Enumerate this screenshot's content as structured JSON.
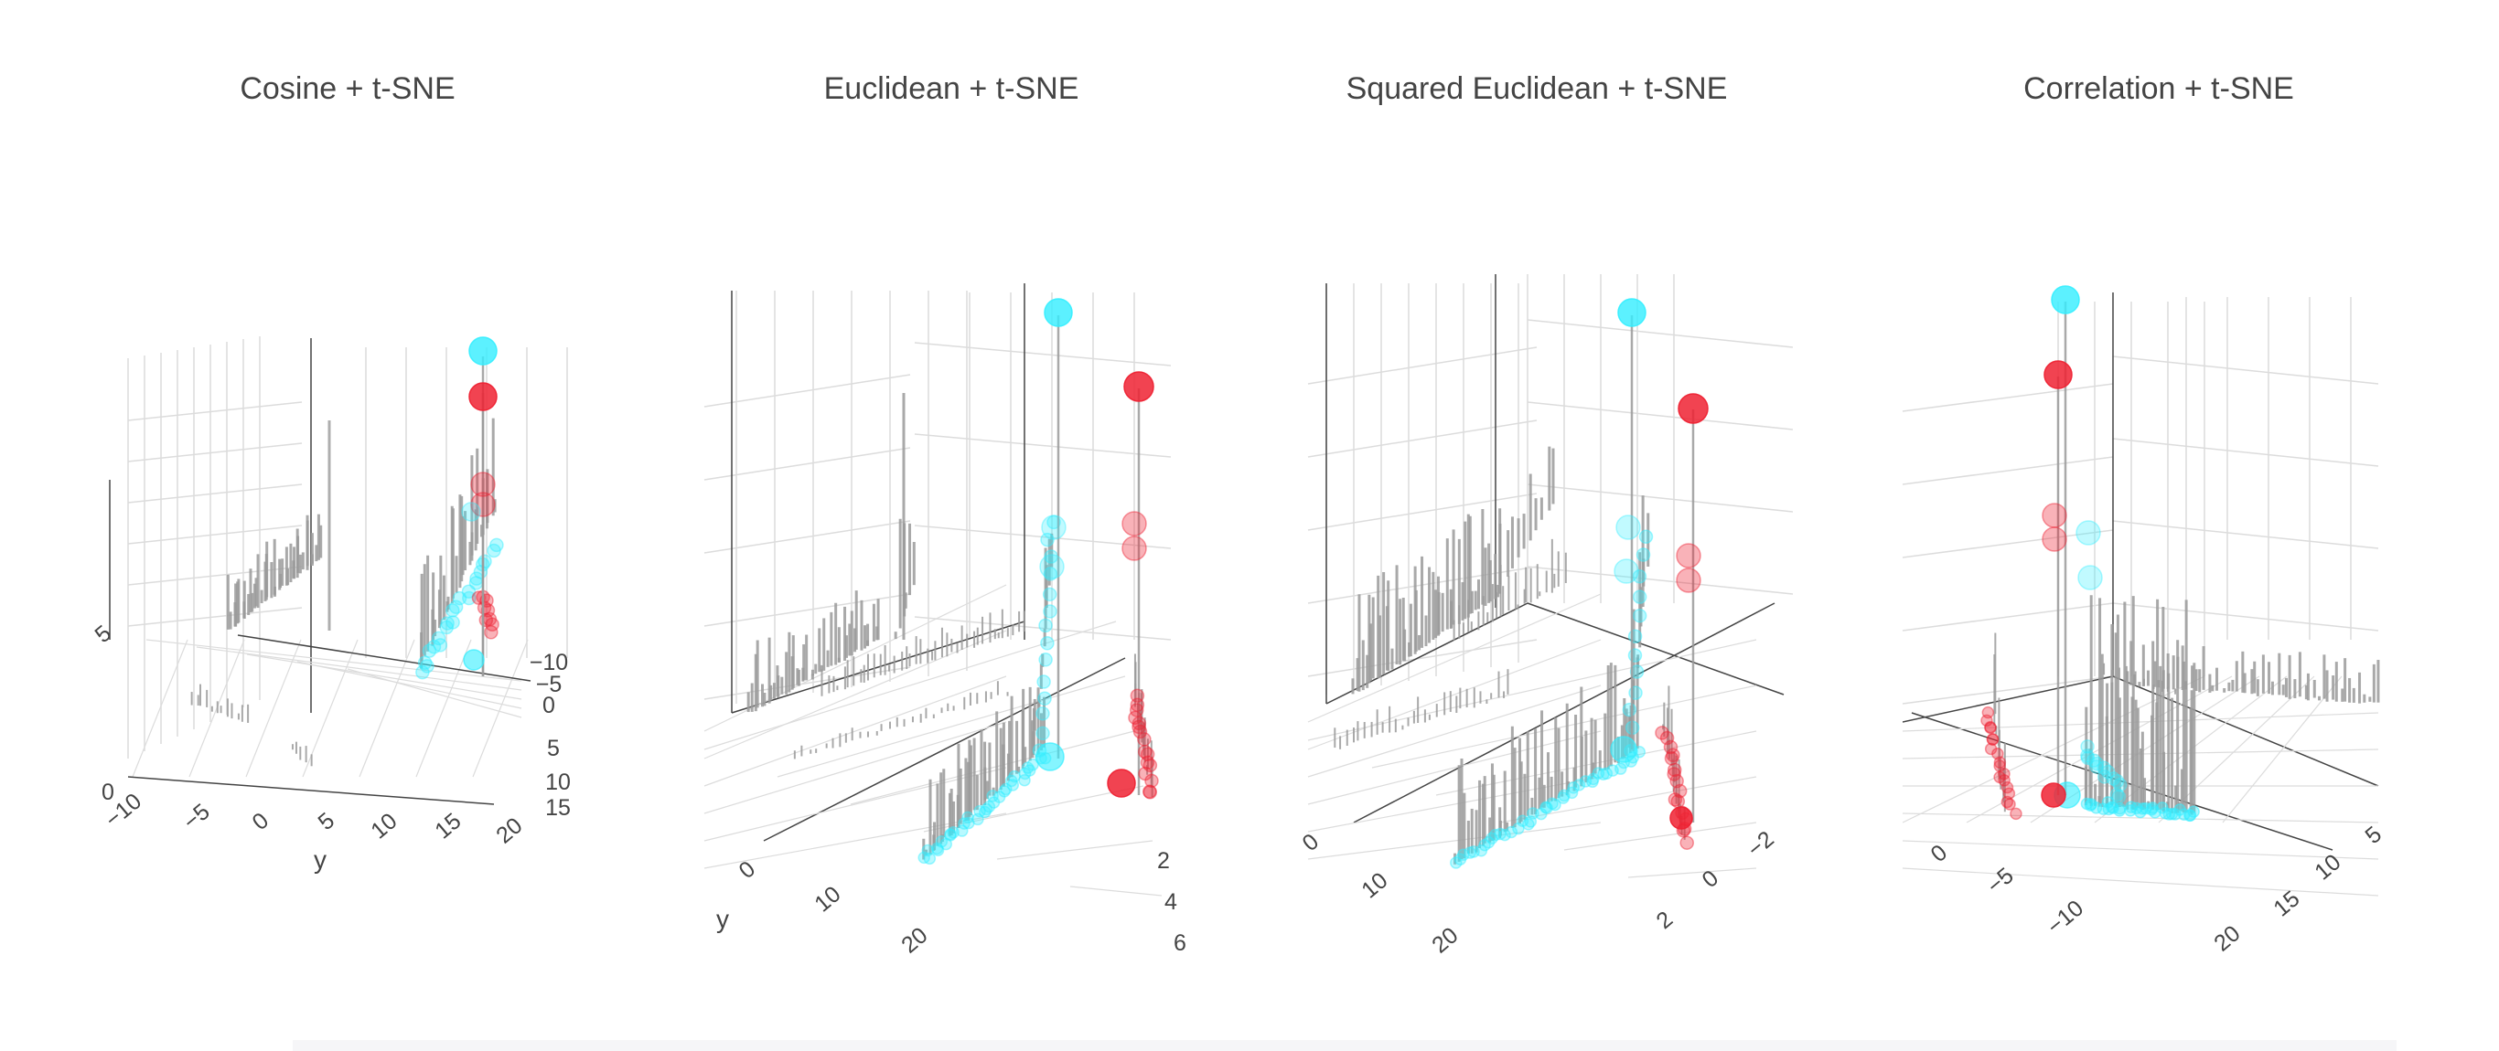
{
  "colors": {
    "cyan": "#33eeff",
    "red": "#ee2233",
    "stem": "#9a9a9a",
    "grid": "#dcdcdc",
    "axis": "#444444"
  },
  "chart_data": [
    {
      "type": "scatter",
      "title": "Cosine + t-SNE",
      "ylabel": "y",
      "yticks": [
        "−10",
        "−5",
        "0",
        "5",
        "10",
        "15",
        "20"
      ],
      "xticks": [
        "−10",
        "−5",
        "0",
        "5",
        "10",
        "15"
      ],
      "cut_labels": [
        "0",
        "5"
      ]
    },
    {
      "type": "scatter",
      "title": "Euclidean + t-SNE",
      "ylabel": "y",
      "yticks": [
        "0",
        "10",
        "20"
      ],
      "xticks": [
        "2",
        "4",
        "6"
      ]
    },
    {
      "type": "scatter",
      "title": "Squared Euclidean + t-SNE",
      "ylabel": "",
      "yticks": [
        "0",
        "10",
        "20"
      ],
      "xticks": [
        "−2",
        "0",
        "2"
      ]
    },
    {
      "type": "scatter",
      "title": "Correlation + t-SNE",
      "ylabel": "",
      "yticks": [
        "0",
        "−5",
        "−10"
      ],
      "xticks": [
        "5",
        "10",
        "15",
        "20"
      ]
    }
  ]
}
